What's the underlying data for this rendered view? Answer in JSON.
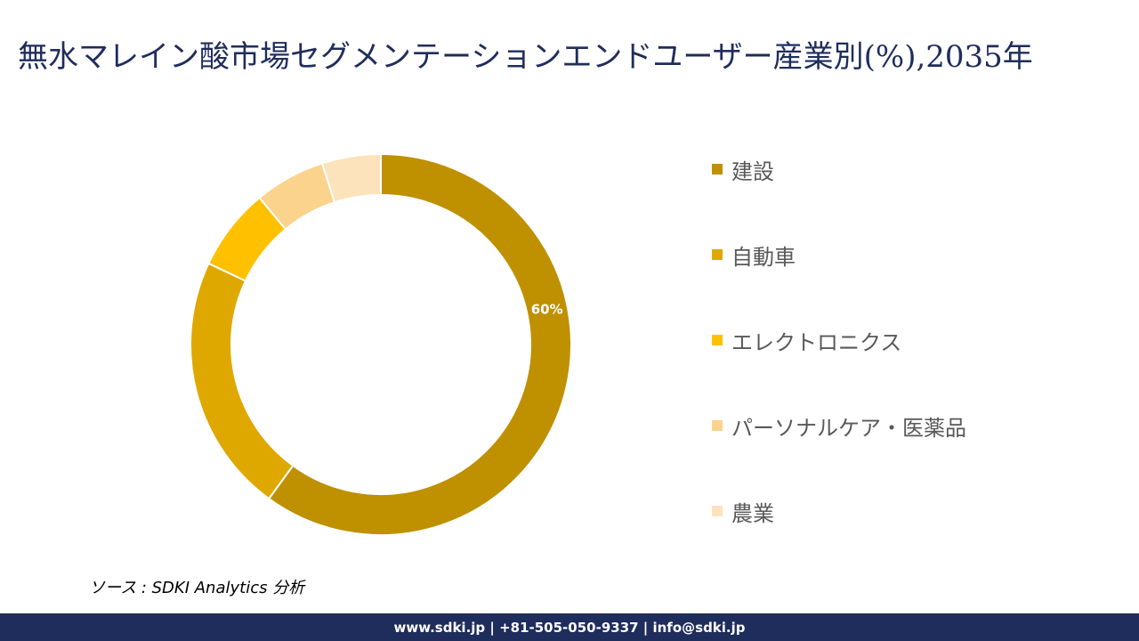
{
  "title": "無水マレイン酸市場セグメンテーションエンドユーザー産業別(%),2035年",
  "chart_data": {
    "type": "pie",
    "title": "無水マレイン酸市場セグメンテーションエンドユーザー産業別(%),2035年",
    "donut": true,
    "start_angle_deg": 0,
    "direction": "clockwise",
    "legend_position": "right",
    "slices": [
      {
        "label": "建設",
        "value": 60,
        "color": "#bf9000",
        "data_label": "60%"
      },
      {
        "label": "自動車",
        "value": 22,
        "color": "#dfa800",
        "data_label": ""
      },
      {
        "label": "エレクトロニクス",
        "value": 7,
        "color": "#ffc000",
        "data_label": ""
      },
      {
        "label": "パーソナルケア・医薬品",
        "value": 6,
        "color": "#fcd38c",
        "data_label": ""
      },
      {
        "label": "農業",
        "value": 5,
        "color": "#fde3bb",
        "data_label": ""
      }
    ]
  },
  "source": "ソース : SDKI Analytics  分析",
  "footer": "www.sdki.jp | +81-505-050-9337 | info@sdki.jp"
}
